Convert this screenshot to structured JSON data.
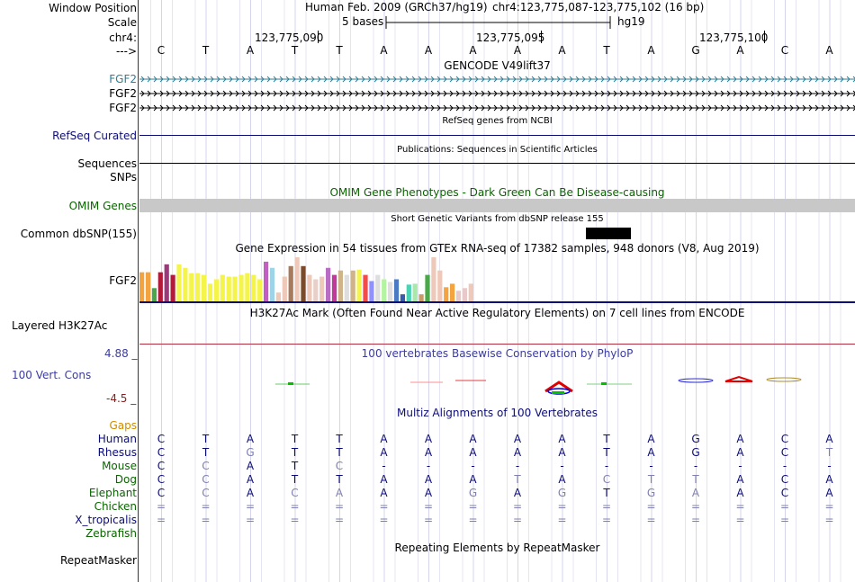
{
  "header": {
    "window_position_label": "Window Position",
    "scale_label": "Scale",
    "chrom_label": "chr4:",
    "strand_label": "--->",
    "assembly": "Human Feb. 2009 (GRCh37/hg19)",
    "position": "chr4:123,775,087-123,775,102 (16 bp)",
    "scale_text": "5 bases",
    "scale_db": "hg19",
    "ruler_ticks": [
      "123,775,090",
      "123,775,095",
      "123,775,100"
    ]
  },
  "bases": [
    "C",
    "T",
    "A",
    "T",
    "T",
    "A",
    "A",
    "A",
    "A",
    "A",
    "T",
    "A",
    "G",
    "A",
    "C",
    "A"
  ],
  "tracks": {
    "gencode": {
      "title": "GENCODE V49lift37",
      "genes": [
        "FGF2",
        "FGF2",
        "FGF2"
      ],
      "colors": [
        "#2e7f96",
        "#000000",
        "#000000"
      ]
    },
    "refseq": {
      "title": "RefSeq genes from NCBI",
      "label": "RefSeq Curated",
      "color": "#0c0c78"
    },
    "publications": {
      "title": "Publications: Sequences in Scientific Articles",
      "label": "Sequences"
    },
    "snps_label": "SNPs",
    "omim": {
      "title": "OMIM Gene Phenotypes - Dark Green Can Be Disease-causing",
      "label": "OMIM Genes",
      "color": "#0a6400"
    },
    "dbsnp": {
      "title": "Short Genetic Variants from dbSNP release 155",
      "label": "Common dbSNP(155)"
    },
    "gtex": {
      "title": "Gene Expression in 54 tissues from GTEx RNA-seq of 17382 samples, 948 donors (V8, Aug 2019)",
      "label": "FGF2"
    },
    "h3k27ac": {
      "title": "H3K27Ac Mark (Often Found Near Active Regulatory Elements) on 7 cell lines from ENCODE",
      "label": "Layered H3K27Ac"
    },
    "phylop": {
      "title": "100 vertebrates Basewise Conservation by PhyloP",
      "label": "100 Vert. Cons",
      "max": "4.88 _",
      "min": "-4.5 _",
      "color": "#3c3ca0"
    },
    "multiz": {
      "title": "Multiz Alignments of 100 Vertebrates",
      "gaps_label": "Gaps"
    },
    "repeatmasker": {
      "title": "Repeating Elements by RepeatMasker",
      "label": "RepeatMasker"
    }
  },
  "species": [
    {
      "name": "Human",
      "color": "#0c0c78",
      "row": [
        "C",
        "T",
        "A",
        "T",
        "T",
        "A",
        "A",
        "A",
        "A",
        "A",
        "T",
        "A",
        "G",
        "A",
        "C",
        "A"
      ],
      "style": [
        "d",
        "d",
        "d",
        "d",
        "d",
        "d",
        "d",
        "d",
        "d",
        "d",
        "d",
        "d",
        "d",
        "d",
        "d",
        "d"
      ]
    },
    {
      "name": "Rhesus",
      "color": "#0c0c78",
      "row": [
        "C",
        "T",
        "G",
        "T",
        "T",
        "A",
        "A",
        "A",
        "A",
        "A",
        "T",
        "A",
        "G",
        "A",
        "C",
        "T"
      ],
      "style": [
        "d",
        "d",
        "l",
        "d",
        "d",
        "d",
        "d",
        "d",
        "d",
        "d",
        "d",
        "d",
        "d",
        "d",
        "d",
        "l"
      ]
    },
    {
      "name": "Mouse",
      "color": "#0a6400",
      "row": [
        "C",
        "C",
        "A",
        "T",
        "C",
        "-",
        "-",
        "-",
        "-",
        "-",
        "-",
        "-",
        "-",
        "-",
        "-",
        "-"
      ],
      "style": [
        "d",
        "l",
        "d",
        "d",
        "l",
        "d",
        "d",
        "d",
        "d",
        "d",
        "d",
        "d",
        "d",
        "d",
        "d",
        "d"
      ]
    },
    {
      "name": "Dog",
      "color": "#0a6400",
      "row": [
        "C",
        "C",
        "A",
        "T",
        "T",
        "A",
        "A",
        "A",
        "T",
        "A",
        "C",
        "T",
        "T",
        "A",
        "C",
        "A"
      ],
      "style": [
        "d",
        "l",
        "d",
        "d",
        "d",
        "d",
        "d",
        "d",
        "l",
        "d",
        "l",
        "l",
        "l",
        "d",
        "d",
        "d"
      ]
    },
    {
      "name": "Elephant",
      "color": "#0a6400",
      "row": [
        "C",
        "C",
        "A",
        "C",
        "A",
        "A",
        "A",
        "G",
        "A",
        "G",
        "T",
        "G",
        "A",
        "A",
        "C",
        "A"
      ],
      "style": [
        "d",
        "l",
        "d",
        "l",
        "l",
        "d",
        "d",
        "l",
        "d",
        "l",
        "d",
        "l",
        "l",
        "d",
        "d",
        "d"
      ]
    },
    {
      "name": "Chicken",
      "color": "#0a6400",
      "row": [
        "=",
        "=",
        "=",
        "=",
        "=",
        "=",
        "=",
        "=",
        "=",
        "=",
        "=",
        "=",
        "=",
        "=",
        "=",
        "="
      ],
      "style": [
        "l",
        "l",
        "l",
        "l",
        "l",
        "l",
        "l",
        "l",
        "l",
        "l",
        "l",
        "l",
        "l",
        "l",
        "l",
        "l"
      ]
    },
    {
      "name": "X_tropicalis",
      "color": "#0c0c78",
      "row": [
        "=",
        "=",
        "=",
        "=",
        "=",
        "=",
        "=",
        "=",
        "=",
        "=",
        "=",
        "=",
        "=",
        "=",
        "=",
        "="
      ],
      "style": [
        "l",
        "l",
        "l",
        "l",
        "l",
        "l",
        "l",
        "l",
        "l",
        "l",
        "l",
        "l",
        "l",
        "l",
        "l",
        "l"
      ]
    },
    {
      "name": "Zebrafish",
      "color": "#0a6400",
      "row": [],
      "style": []
    }
  ],
  "colors": {
    "gaps_label": "#d08c00",
    "phylop_max": "#3c3ca0",
    "phylop_min": "#8c1e1e",
    "dark_base": "#0c0c78",
    "light_base": "#8080b0",
    "sidebar_rule": "#c00000",
    "h3k27ac_line": "#b03040",
    "omim_bar": "#c8c8c8",
    "dbsnp_block": "#000000"
  },
  "gtex_bars": {
    "values": [
      0.33,
      0.33,
      0.15,
      0.33,
      0.42,
      0.3,
      0.42,
      0.38,
      0.32,
      0.32,
      0.3,
      0.2,
      0.25,
      0.3,
      0.28,
      0.28,
      0.3,
      0.32,
      0.3,
      0.25,
      0.45,
      0.38,
      0.1,
      0.28,
      0.4,
      0.5,
      0.4,
      0.3,
      0.25,
      0.28,
      0.38,
      0.3,
      0.35,
      0.3,
      0.35,
      0.36,
      0.3,
      0.23,
      0.3,
      0.25,
      0.22,
      0.25,
      0.08,
      0.19,
      0.2,
      0.08,
      0.3,
      0.5,
      0.35,
      0.16,
      0.2,
      0.12,
      0.15,
      0.2
    ],
    "colors": [
      "#f4a341",
      "#f4a341",
      "#4aa84a",
      "#b21a3a",
      "#9a3a7a",
      "#b21a3a",
      "#f4f44a",
      "#f4f44a",
      "#f4f44a",
      "#f4f44a",
      "#f4f44a",
      "#f4f44a",
      "#f4f44a",
      "#f4f44a",
      "#f4f44a",
      "#f4f44a",
      "#f4f44a",
      "#f4f44a",
      "#f4f44a",
      "#f4f44a",
      "#c45ec4",
      "#9ed4e8",
      "#eec8b8",
      "#eec8b8",
      "#a87a5c",
      "#eec8b8",
      "#7a4a2a",
      "#eec8b8",
      "#e8cfc8",
      "#eec8b8",
      "#b86cc4",
      "#c03a9a",
      "#cfb48a",
      "#dedede",
      "#cfb48a",
      "#f4f44a",
      "#f44a4a",
      "#9090ff",
      "#dedede",
      "#b4f4a0",
      "#dedede",
      "#4a7ac4",
      "#3a5aaa",
      "#4ad4b4",
      "#a8e8a8",
      "#c89a6a",
      "#4aa84a",
      "#eec8b8",
      "#eec8b8",
      "#f4a341",
      "#f4a341",
      "#e8c8c8",
      "#e8c8c8",
      "#eec8b8"
    ]
  }
}
